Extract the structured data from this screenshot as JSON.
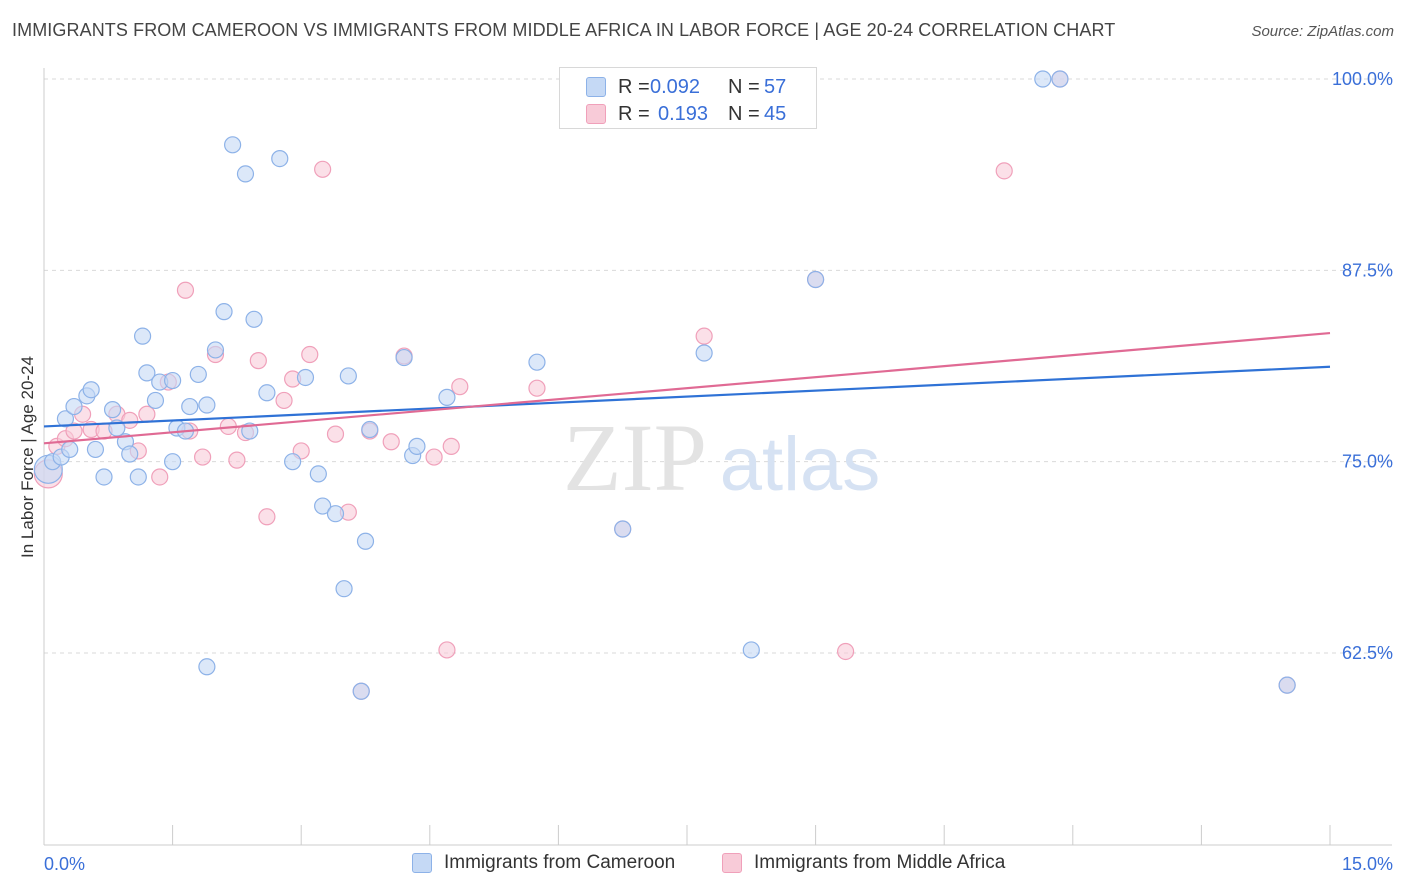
{
  "title": "IMMIGRANTS FROM CAMEROON VS IMMIGRANTS FROM MIDDLE AFRICA IN LABOR FORCE | AGE 20-24 CORRELATION CHART",
  "source": "Source: ZipAtlas.com",
  "legend": {
    "rows": [
      {
        "r_label": "R =",
        "r_value": "0.092",
        "n_label": "N =",
        "n_value": "57"
      },
      {
        "r_label": "R =",
        "r_value": "0.193",
        "n_label": "N =",
        "n_value": "45"
      }
    ]
  },
  "watermark": {
    "zip": "ZIP",
    "atlas": "atlas"
  },
  "colors": {
    "blue_fill": "#c5d9f5",
    "blue_stroke": "#8db2e8",
    "blue_line": "#2f72d6",
    "pink_fill": "#f8cbd8",
    "pink_stroke": "#f0a0ba",
    "pink_line": "#e06a94",
    "axis_text": "#3a6fd8",
    "grid": "#d9d9d9"
  },
  "chart_data": {
    "type": "scatter",
    "title": "IMMIGRANTS FROM CAMEROON VS IMMIGRANTS FROM MIDDLE AFRICA IN LABOR FORCE | AGE 20-24 CORRELATION CHART",
    "xlabel": "",
    "ylabel": "In Labor Force | Age 20-24",
    "xlim": [
      0,
      15
    ],
    "ylim": [
      50,
      101
    ],
    "x_tick_labels": [
      "0.0%",
      "15.0%"
    ],
    "y_ticks": [
      62.5,
      75.0,
      87.5,
      100.0
    ],
    "y_tick_labels": [
      "62.5%",
      "75.0%",
      "87.5%",
      "100.0%"
    ],
    "series": [
      {
        "name": "Immigrants from Cameroon",
        "R": 0.092,
        "N": 57,
        "trend": {
          "x": [
            0,
            15
          ],
          "y": [
            77.3,
            81.2
          ]
        },
        "points": [
          [
            0.05,
            74.5
          ],
          [
            0.1,
            75.0
          ],
          [
            0.2,
            75.3
          ],
          [
            0.25,
            77.8
          ],
          [
            0.3,
            75.8
          ],
          [
            0.35,
            78.6
          ],
          [
            0.5,
            79.3
          ],
          [
            0.55,
            79.7
          ],
          [
            0.6,
            75.8
          ],
          [
            0.7,
            74.0
          ],
          [
            0.8,
            78.4
          ],
          [
            0.85,
            77.2
          ],
          [
            0.95,
            76.3
          ],
          [
            1.0,
            75.5
          ],
          [
            1.1,
            74.0
          ],
          [
            1.15,
            83.2
          ],
          [
            1.2,
            80.8
          ],
          [
            1.3,
            79.0
          ],
          [
            1.35,
            80.2
          ],
          [
            1.5,
            80.3
          ],
          [
            1.5,
            75.0
          ],
          [
            1.55,
            77.2
          ],
          [
            1.65,
            77.0
          ],
          [
            1.7,
            78.6
          ],
          [
            1.8,
            80.7
          ],
          [
            1.9,
            78.7
          ],
          [
            1.9,
            61.6
          ],
          [
            2.0,
            82.3
          ],
          [
            2.1,
            84.8
          ],
          [
            2.2,
            95.7
          ],
          [
            2.35,
            93.8
          ],
          [
            2.4,
            77.0
          ],
          [
            2.45,
            84.3
          ],
          [
            2.6,
            79.5
          ],
          [
            2.75,
            94.8
          ],
          [
            2.9,
            75.0
          ],
          [
            3.05,
            80.5
          ],
          [
            3.2,
            74.2
          ],
          [
            3.25,
            72.1
          ],
          [
            3.4,
            71.6
          ],
          [
            3.5,
            66.7
          ],
          [
            3.55,
            80.6
          ],
          [
            3.7,
            60.0
          ],
          [
            3.75,
            69.8
          ],
          [
            3.8,
            77.1
          ],
          [
            4.2,
            81.8
          ],
          [
            4.3,
            75.4
          ],
          [
            4.35,
            76.0
          ],
          [
            4.7,
            79.2
          ],
          [
            5.75,
            81.5
          ],
          [
            6.75,
            70.6
          ],
          [
            7.7,
            82.1
          ],
          [
            8.25,
            62.7
          ],
          [
            9.0,
            86.9
          ],
          [
            11.65,
            100.0
          ],
          [
            11.85,
            100.0
          ],
          [
            14.5,
            60.4
          ]
        ]
      },
      {
        "name": "Immigrants from Middle Africa",
        "R": 0.193,
        "N": 45,
        "trend": {
          "x": [
            0,
            15
          ],
          "y": [
            76.2,
            83.4
          ]
        },
        "points": [
          [
            0.05,
            74.2
          ],
          [
            0.15,
            76.0
          ],
          [
            0.25,
            76.5
          ],
          [
            0.35,
            77.0
          ],
          [
            0.45,
            78.1
          ],
          [
            0.55,
            77.1
          ],
          [
            0.7,
            77.0
          ],
          [
            0.85,
            78.1
          ],
          [
            1.0,
            77.7
          ],
          [
            1.1,
            75.7
          ],
          [
            1.2,
            78.1
          ],
          [
            1.35,
            74.0
          ],
          [
            1.45,
            80.2
          ],
          [
            1.65,
            86.2
          ],
          [
            1.7,
            77.0
          ],
          [
            1.85,
            75.3
          ],
          [
            2.0,
            82.0
          ],
          [
            2.15,
            77.3
          ],
          [
            2.25,
            75.1
          ],
          [
            2.35,
            76.9
          ],
          [
            2.5,
            81.6
          ],
          [
            2.6,
            71.4
          ],
          [
            2.8,
            79.0
          ],
          [
            2.9,
            80.4
          ],
          [
            3.0,
            75.7
          ],
          [
            3.1,
            82.0
          ],
          [
            3.25,
            94.1
          ],
          [
            3.4,
            76.8
          ],
          [
            3.55,
            71.7
          ],
          [
            3.7,
            60.0
          ],
          [
            3.8,
            77.0
          ],
          [
            4.2,
            81.9
          ],
          [
            4.05,
            76.3
          ],
          [
            4.55,
            75.3
          ],
          [
            4.7,
            62.7
          ],
          [
            4.75,
            76.0
          ],
          [
            4.85,
            79.9
          ],
          [
            5.75,
            79.8
          ],
          [
            6.75,
            70.6
          ],
          [
            7.7,
            83.2
          ],
          [
            9.0,
            86.9
          ],
          [
            9.35,
            62.6
          ],
          [
            11.2,
            94.0
          ],
          [
            11.85,
            100.0
          ],
          [
            14.5,
            60.4
          ]
        ]
      }
    ]
  },
  "bottom_legend": [
    {
      "label": "Immigrants from Cameroon"
    },
    {
      "label": "Immigrants from Middle Africa"
    }
  ]
}
